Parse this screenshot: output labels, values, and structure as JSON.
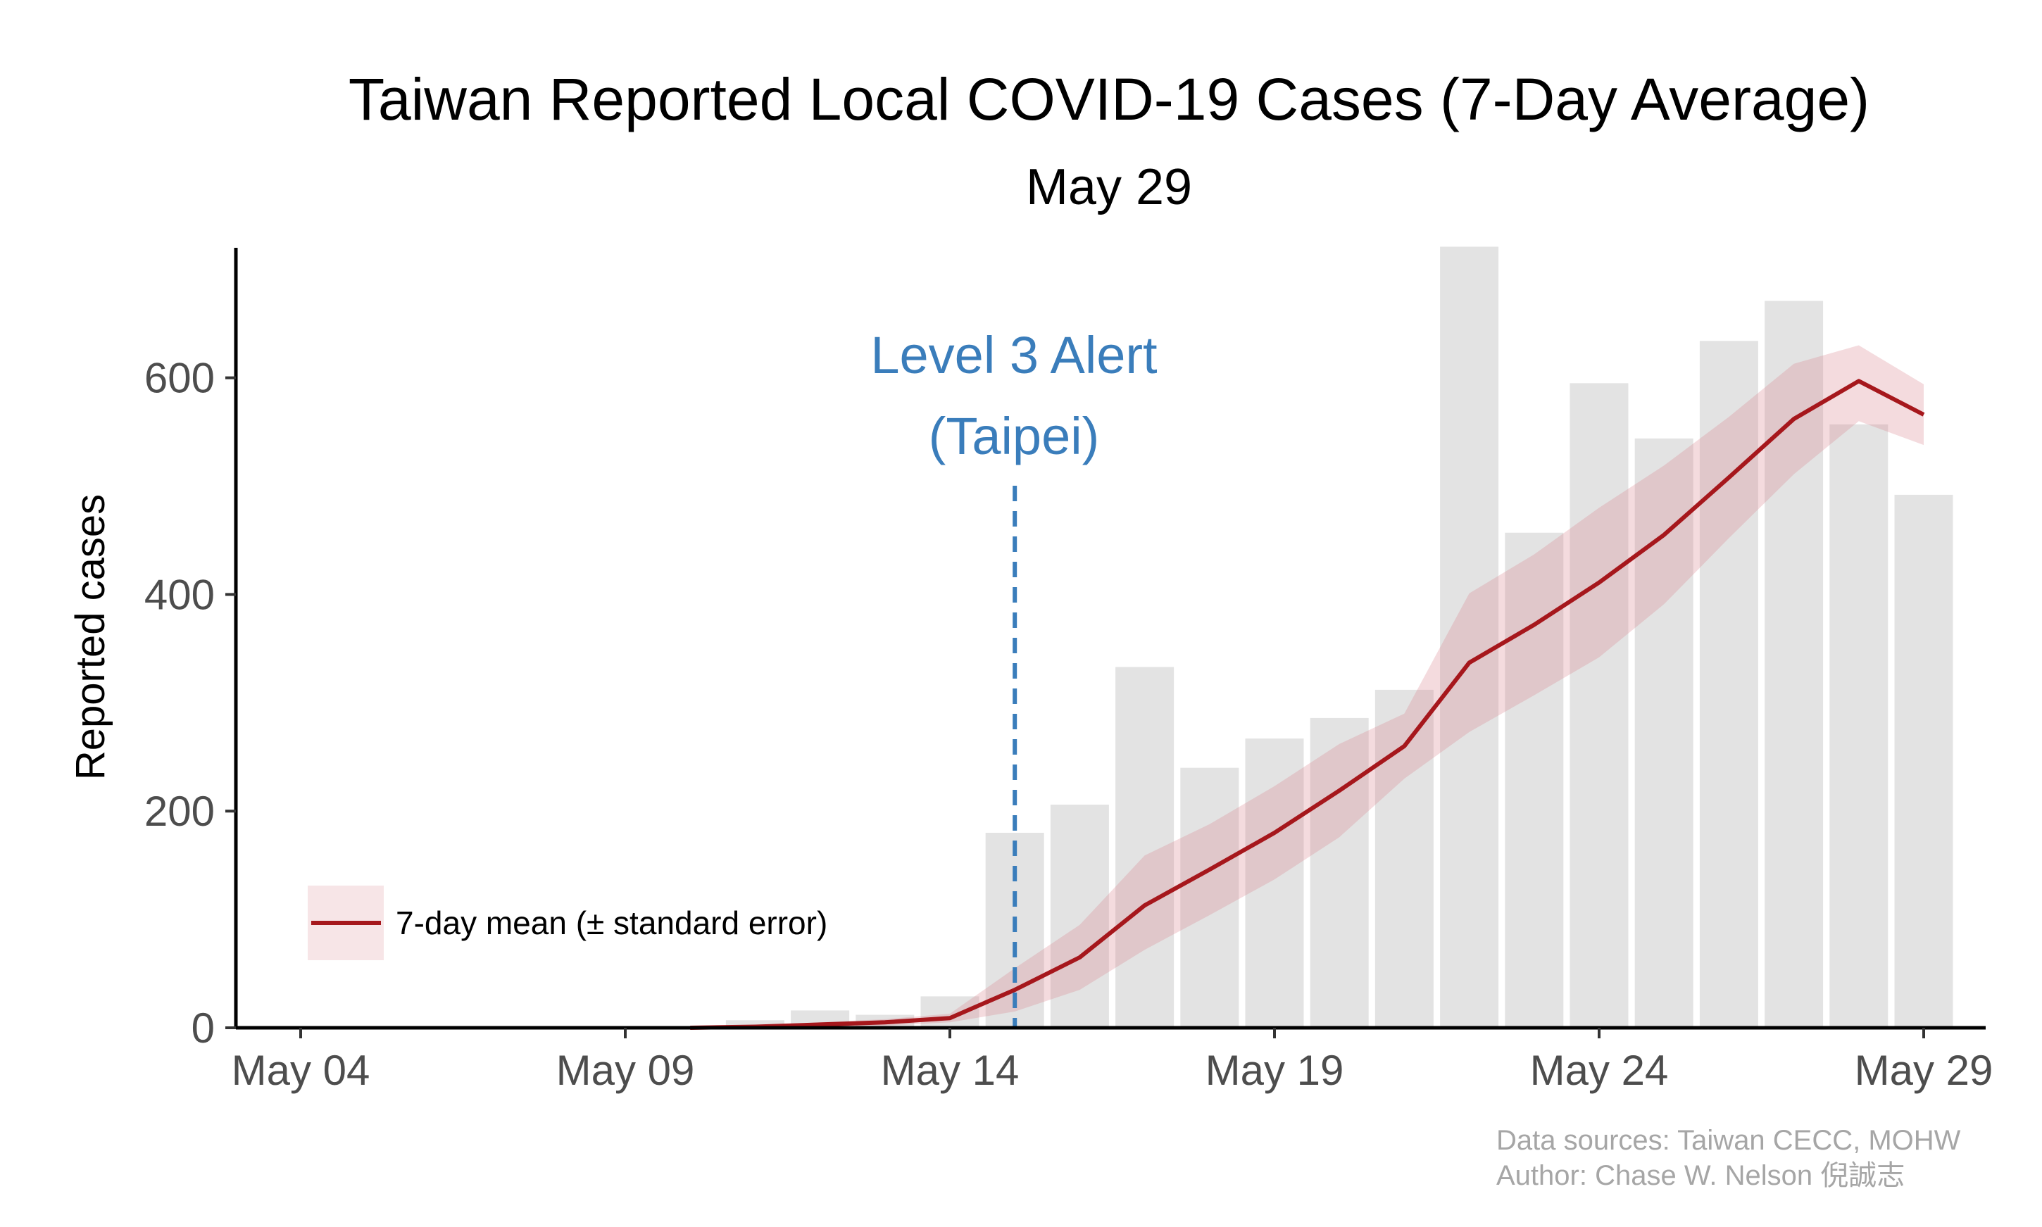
{
  "chart_data": {
    "type": "bar",
    "title": "Taiwan Reported Local COVID-19 Cases (7-Day Average)",
    "subtitle": "May 29",
    "ylabel": "Reported cases",
    "xlabel": "",
    "ylim": [
      0,
      720
    ],
    "yticks": [
      0,
      200,
      400,
      600
    ],
    "xticks": [
      "May 04",
      "May 09",
      "May 14",
      "May 19",
      "May 24",
      "May 29"
    ],
    "grid": false,
    "categories": [
      "May 10",
      "May 11",
      "May 12",
      "May 13",
      "May 14",
      "May 15",
      "May 16",
      "May 17",
      "May 18",
      "May 19",
      "May 20",
      "May 21",
      "May 22",
      "May 23",
      "May 24",
      "May 25",
      "May 26",
      "May 27",
      "May 28",
      "May 29"
    ],
    "series": [
      {
        "name": "Reported cases",
        "color": "#e3e3e3",
        "values": [
          0,
          7,
          16,
          12,
          29,
          180,
          206,
          333,
          240,
          267,
          286,
          312,
          721,
          457,
          595,
          544,
          634,
          671,
          557,
          492
        ]
      },
      {
        "name": "7-day mean (± standard error)",
        "color": "#a6171c",
        "band_color": "#dc8791",
        "values": [
          0,
          1,
          3,
          5,
          9,
          35,
          65,
          113,
          146,
          180,
          219,
          260,
          337,
          372,
          411,
          455,
          508,
          562,
          597,
          566
        ],
        "lower": [
          0,
          0,
          1,
          2,
          5,
          15,
          35,
          72,
          104,
          137,
          176,
          230,
          273,
          307,
          342,
          391,
          452,
          511,
          560,
          538
        ],
        "upper": [
          0,
          2,
          5,
          8,
          13,
          55,
          95,
          159,
          188,
          223,
          262,
          290,
          401,
          437,
          480,
          519,
          564,
          613,
          630,
          594
        ]
      }
    ],
    "annotation": {
      "date": "May 15",
      "text_lines": [
        "Level 3 Alert",
        "(Taipei)"
      ],
      "color": "#3a7dbb"
    },
    "legend": {
      "placement": "bottom-left",
      "label": "7-day mean (± standard error)"
    },
    "sources_lines": [
      "Data sources: Taiwan CECC, MOHW",
      "Author: Chase W. Nelson 倪誠志"
    ]
  }
}
